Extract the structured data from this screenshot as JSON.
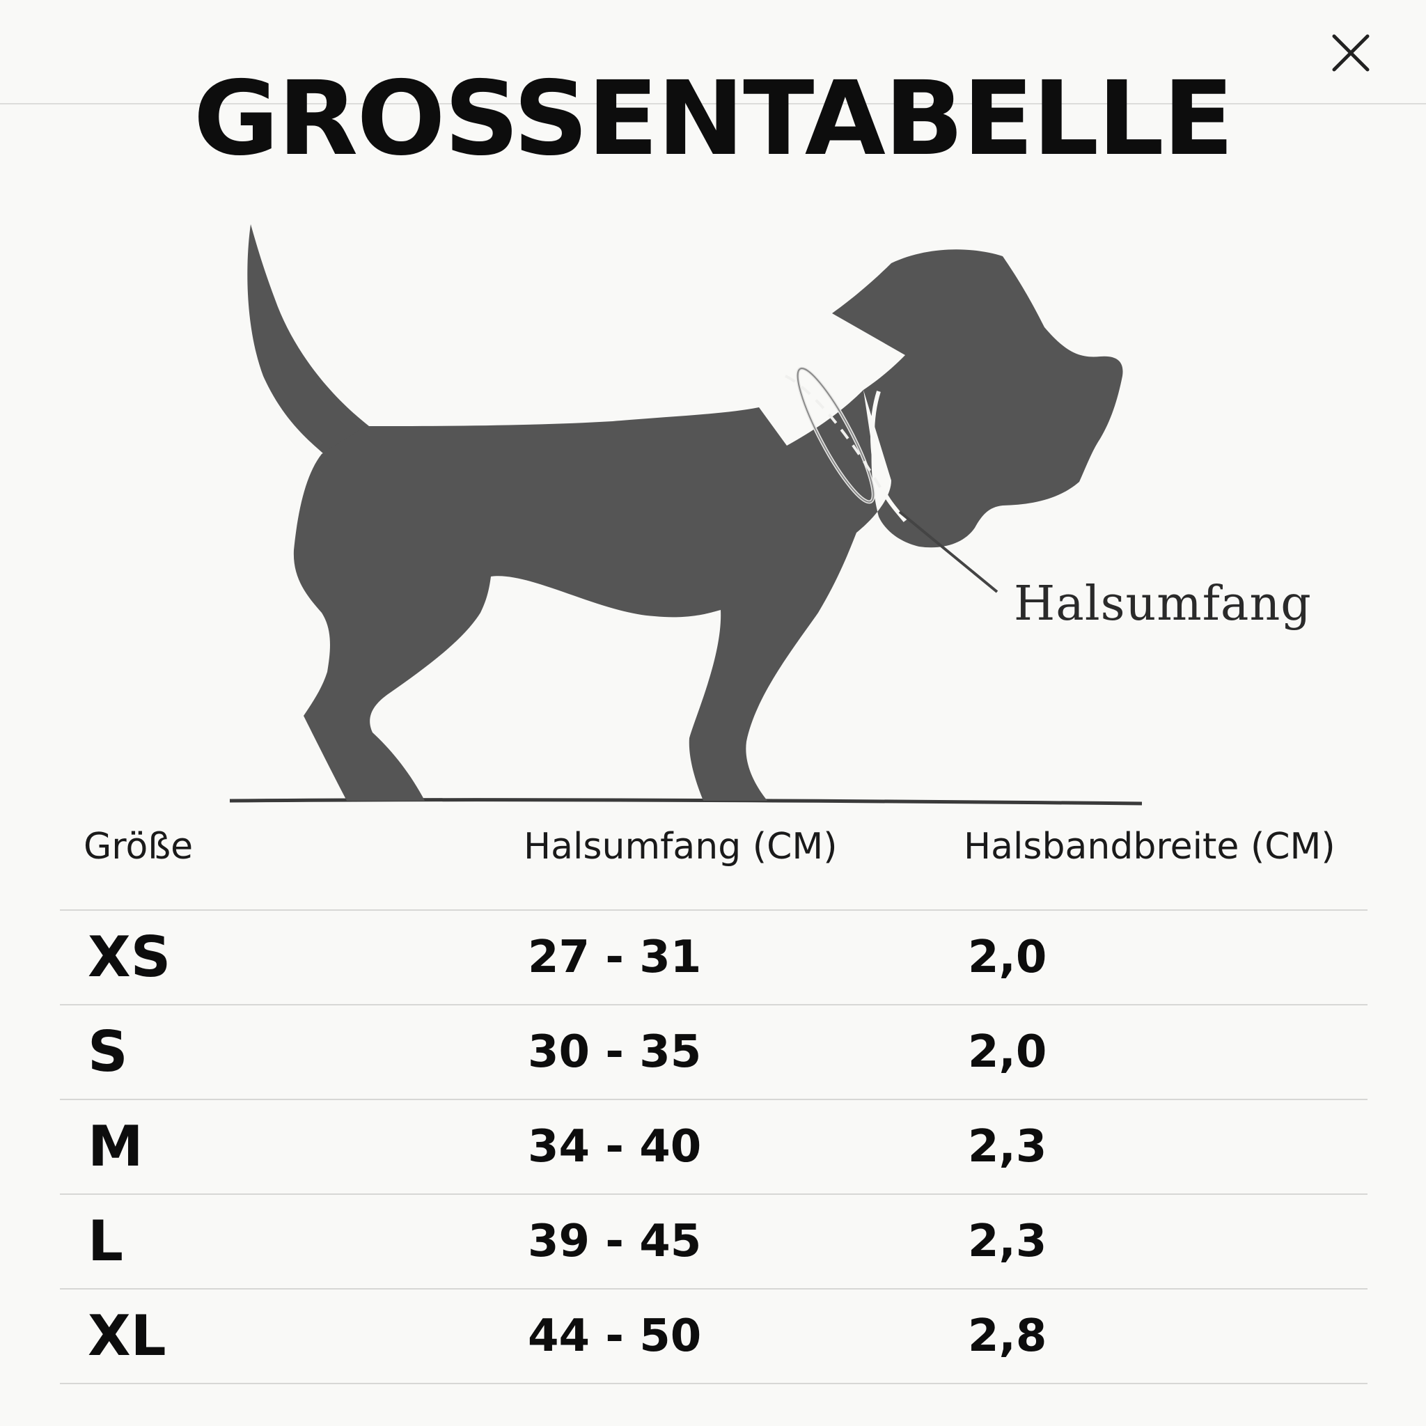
{
  "title": "GROSSENTABELLE",
  "close_icon": "close-icon",
  "illustration": {
    "icon": "dog-silhouette-icon",
    "callout_label": "Halsumfang",
    "fill_color": "#555555"
  },
  "table": {
    "headers": [
      "Größe",
      "Halsumfang (CM)",
      "Halsbandbreite (CM)"
    ],
    "rows": [
      {
        "size": "XS",
        "neck": "27 - 31",
        "width": "2,0"
      },
      {
        "size": "S",
        "neck": "30 - 35",
        "width": "2,0"
      },
      {
        "size": "M",
        "neck": "34 - 40",
        "width": "2,3"
      },
      {
        "size": "L",
        "neck": "39 - 45",
        "width": "2,3"
      },
      {
        "size": "XL",
        "neck": "44 - 50",
        "width": "2,8"
      }
    ]
  }
}
